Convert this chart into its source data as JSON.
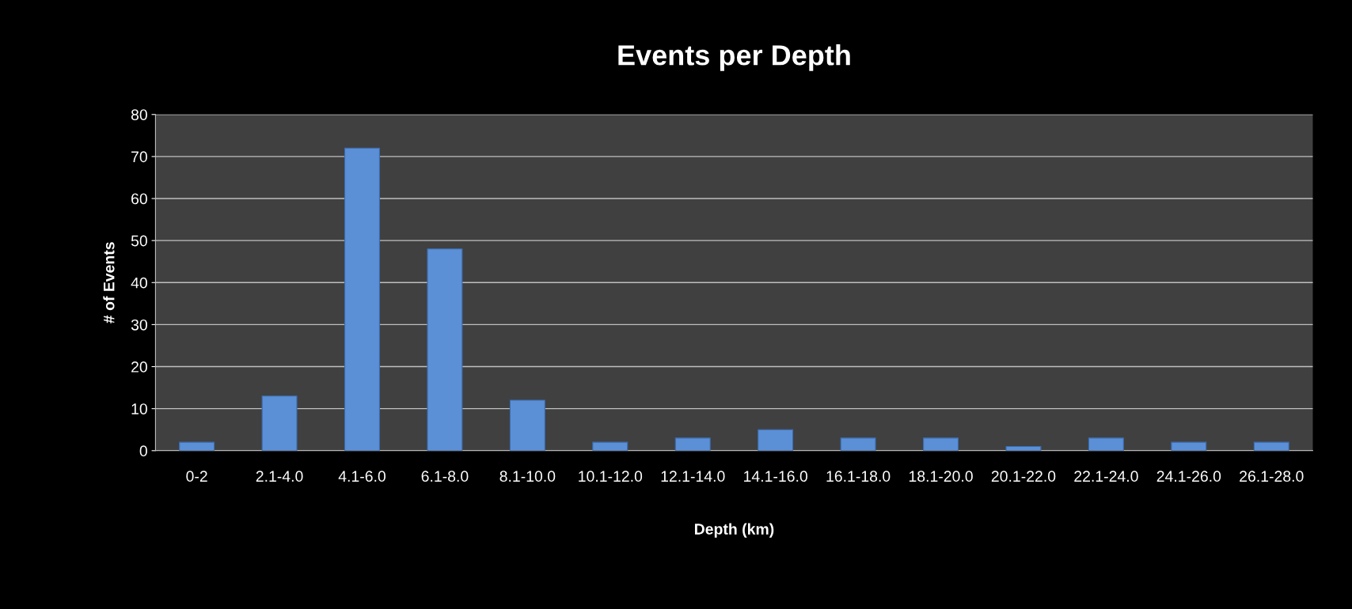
{
  "chart_data": {
    "type": "bar",
    "title": "Events per Depth",
    "xlabel": "Depth (km)",
    "ylabel": "# of Events",
    "categories": [
      "0-2",
      "2.1-4.0",
      "4.1-6.0",
      "6.1-8.0",
      "8.1-10.0",
      "10.1-12.0",
      "12.1-14.0",
      "14.1-16.0",
      "16.1-18.0",
      "18.1-20.0",
      "20.1-22.0",
      "22.1-24.0",
      "24.1-26.0",
      "26.1-28.0"
    ],
    "values": [
      2,
      13,
      72,
      48,
      12,
      2,
      3,
      5,
      3,
      3,
      1,
      3,
      2,
      2
    ],
    "color": "#5b8fd6",
    "ylim": [
      0,
      80
    ],
    "yticks": [
      0,
      10,
      20,
      30,
      40,
      50,
      60,
      70,
      80
    ],
    "grid": "y"
  }
}
